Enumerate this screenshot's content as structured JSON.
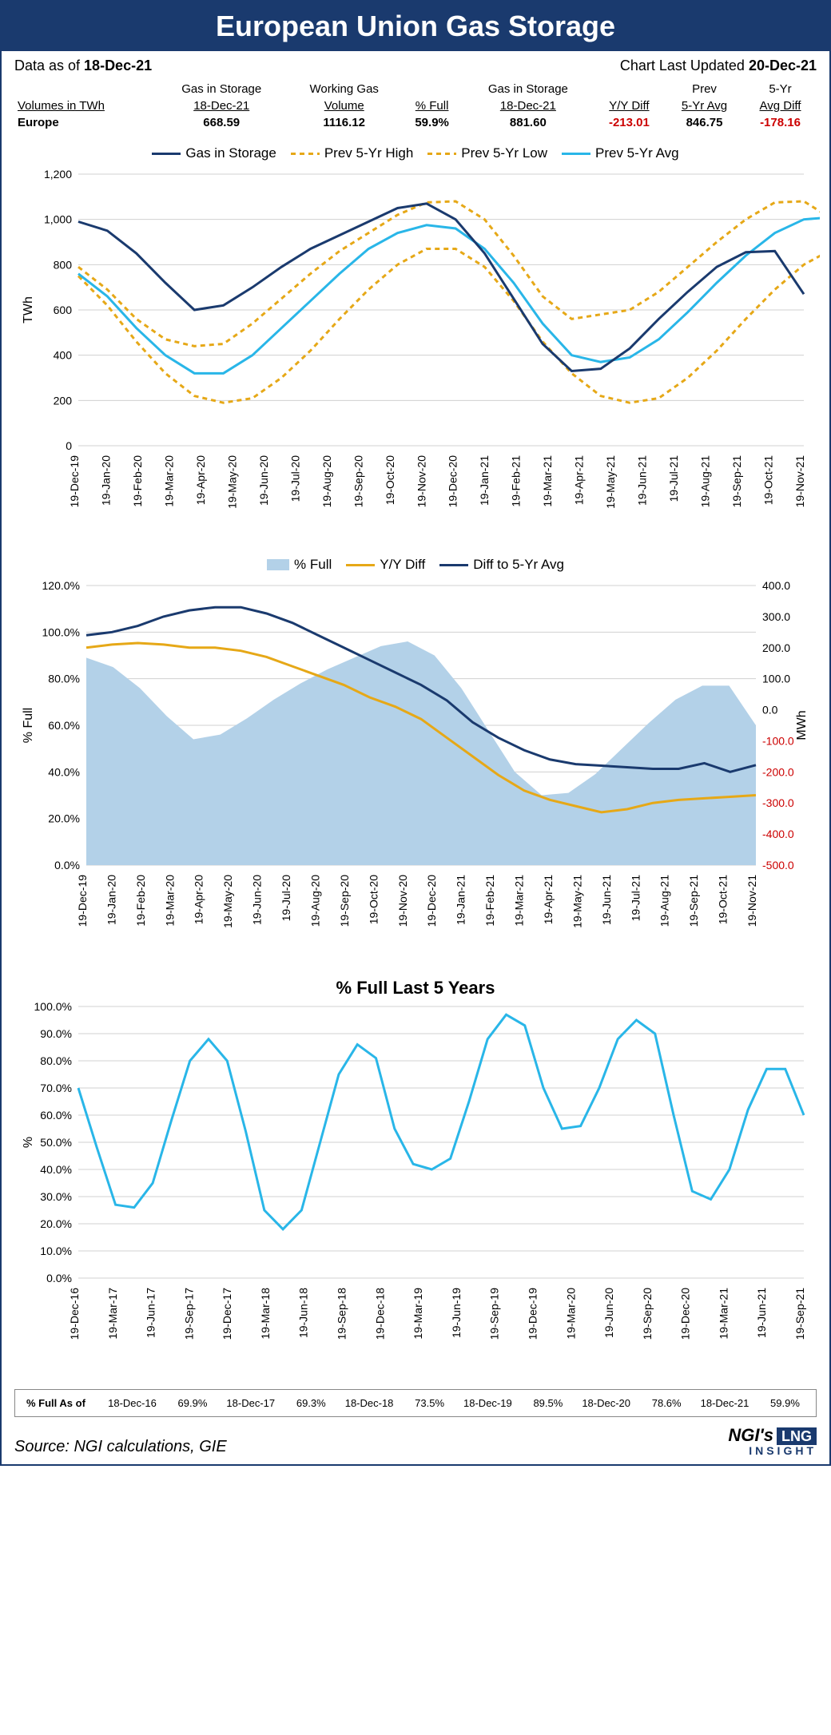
{
  "title": "European Union Gas Storage",
  "meta": {
    "data_as_of_label": "Data as of ",
    "data_as_of": "18-Dec-21",
    "updated_label": "Chart Last Updated ",
    "updated": "20-Dec-21"
  },
  "table": {
    "headers": {
      "volumes": "Volumes in TWh",
      "gas_storage1_a": "Gas in Storage",
      "gas_storage1_b": "18-Dec-21",
      "working_a": "Working Gas",
      "working_b": "Volume",
      "pct_full": "% Full",
      "gas_storage2_a": "Gas in Storage",
      "gas_storage2_b": "18-Dec-21",
      "yy": "Y/Y Diff",
      "prev_a": "Prev",
      "prev_b": "5-Yr Avg",
      "avgdiff_a": "5-Yr",
      "avgdiff_b": "Avg Diff"
    },
    "row": {
      "region": "Europe",
      "gas_storage1": "668.59",
      "working": "1116.12",
      "pct_full": "59.9%",
      "gas_storage2": "881.60",
      "yy": "-213.01",
      "prev": "846.75",
      "avgdiff": "-178.16"
    }
  },
  "chart1": {
    "type": "line",
    "legend": {
      "s1": "Gas in Storage",
      "s2": "Prev 5-Yr High",
      "s3": "Prev 5-Yr Low",
      "s4": "Prev 5-Yr Avg"
    },
    "colors": {
      "gas": "#1a3a6e",
      "high": "#e6a817",
      "low": "#e6a817",
      "avg": "#29b6e8",
      "grid": "#d0d0d0",
      "bg": "#ffffff"
    },
    "ylabel": "TWh",
    "ylim": [
      0,
      1200
    ],
    "ytick_step": 200,
    "yticks": [
      "0",
      "200",
      "400",
      "600",
      "800",
      "1,000",
      "1,200"
    ],
    "xticks": [
      "19-Dec-19",
      "19-Jan-20",
      "19-Feb-20",
      "19-Mar-20",
      "19-Apr-20",
      "19-May-20",
      "19-Jun-20",
      "19-Jul-20",
      "19-Aug-20",
      "19-Sep-20",
      "19-Oct-20",
      "19-Nov-20",
      "19-Dec-20",
      "19-Jan-21",
      "19-Feb-21",
      "19-Mar-21",
      "19-Apr-21",
      "19-May-21",
      "19-Jun-21",
      "19-Jul-21",
      "19-Aug-21",
      "19-Sep-21",
      "19-Oct-21",
      "19-Nov-21"
    ],
    "line_width": 3,
    "dash": "6,5",
    "series": {
      "gas": [
        990,
        950,
        850,
        720,
        600,
        620,
        700,
        790,
        870,
        930,
        990,
        1050,
        1070,
        1000,
        850,
        650,
        450,
        330,
        340,
        430,
        560,
        680,
        790,
        855,
        860,
        670
      ],
      "high": [
        790,
        690,
        560,
        470,
        440,
        450,
        540,
        650,
        760,
        860,
        940,
        1020,
        1075,
        1080,
        1000,
        840,
        660,
        560,
        580,
        600,
        680,
        790,
        900,
        1000,
        1075,
        1080,
        1000
      ],
      "low": [
        750,
        620,
        460,
        320,
        220,
        190,
        210,
        300,
        420,
        560,
        690,
        800,
        870,
        870,
        790,
        640,
        460,
        320,
        220,
        190,
        210,
        300,
        420,
        560,
        690,
        800,
        870,
        870
      ],
      "avg": [
        760,
        660,
        520,
        400,
        320,
        320,
        400,
        520,
        640,
        760,
        870,
        940,
        975,
        960,
        870,
        720,
        540,
        400,
        370,
        390,
        470,
        590,
        720,
        840,
        940,
        1000,
        1010,
        850
      ]
    }
  },
  "chart2": {
    "type": "area+line",
    "legend": {
      "s1": "% Full",
      "s2": "Y/Y Diff",
      "s3": "Diff to 5-Yr Avg"
    },
    "colors": {
      "area": "#b3d1e8",
      "yy": "#e6a817",
      "diff5": "#1a3a6e",
      "grid": "#d0d0d0",
      "neg_axis": "#cc0000"
    },
    "ylabel_left": "% Full",
    "ylabel_right": "MWh",
    "yleft": {
      "min": 0,
      "max": 120,
      "step": 20,
      "ticks": [
        "0.0%",
        "20.0%",
        "40.0%",
        "60.0%",
        "80.0%",
        "100.0%",
        "120.0%"
      ]
    },
    "yright": {
      "min": -500,
      "max": 400,
      "step": 100,
      "ticks": [
        "-500.0",
        "-400.0",
        "-300.0",
        "-200.0",
        "-100.0",
        "0.0",
        "100.0",
        "200.0",
        "300.0",
        "400.0"
      ]
    },
    "xticks": [
      "19-Dec-19",
      "19-Jan-20",
      "19-Feb-20",
      "19-Mar-20",
      "19-Apr-20",
      "19-May-20",
      "19-Jun-20",
      "19-Jul-20",
      "19-Aug-20",
      "19-Sep-20",
      "19-Oct-20",
      "19-Nov-20",
      "19-Dec-20",
      "19-Jan-21",
      "19-Feb-21",
      "19-Mar-21",
      "19-Apr-21",
      "19-May-21",
      "19-Jun-21",
      "19-Jul-21",
      "19-Aug-21",
      "19-Sep-21",
      "19-Oct-21",
      "19-Nov-21"
    ],
    "line_width": 3,
    "series": {
      "pct_full": [
        89,
        85,
        76,
        64,
        54,
        56,
        63,
        71,
        78,
        84,
        89,
        94,
        96,
        90,
        76,
        58,
        40,
        30,
        31,
        39,
        50,
        61,
        71,
        77,
        77,
        60
      ],
      "yy": [
        200,
        210,
        215,
        210,
        200,
        200,
        190,
        170,
        140,
        110,
        80,
        40,
        10,
        -30,
        -90,
        -150,
        -210,
        -260,
        -290,
        -310,
        -330,
        -320,
        -300,
        -290,
        -285,
        -280,
        -275
      ],
      "diff5": [
        240,
        250,
        270,
        300,
        320,
        330,
        330,
        310,
        280,
        240,
        200,
        160,
        120,
        80,
        30,
        -40,
        -90,
        -130,
        -160,
        -175,
        -180,
        -185,
        -190,
        -190,
        -172,
        -200,
        -178
      ]
    }
  },
  "chart3": {
    "type": "line",
    "title": "% Full Last 5 Years",
    "colors": {
      "line": "#29b6e8",
      "grid": "#d0d0d0"
    },
    "ylabel": "%",
    "ylim": [
      0,
      100
    ],
    "ytick_step": 10,
    "yticks": [
      "0.0%",
      "10.0%",
      "20.0%",
      "30.0%",
      "40.0%",
      "50.0%",
      "60.0%",
      "70.0%",
      "80.0%",
      "90.0%",
      "100.0%"
    ],
    "xticks": [
      "19-Dec-16",
      "19-Mar-17",
      "19-Jun-17",
      "19-Sep-17",
      "19-Dec-17",
      "19-Mar-18",
      "19-Jun-18",
      "19-Sep-18",
      "19-Dec-18",
      "19-Mar-19",
      "19-Jun-19",
      "19-Sep-19",
      "19-Dec-19",
      "19-Mar-20",
      "19-Jun-20",
      "19-Sep-20",
      "19-Dec-20",
      "19-Mar-21",
      "19-Jun-21",
      "19-Sep-21"
    ],
    "line_width": 3,
    "series": {
      "pct": [
        70,
        48,
        27,
        26,
        35,
        58,
        80,
        88,
        80,
        54,
        25,
        18,
        25,
        50,
        75,
        86,
        81,
        55,
        42,
        40,
        44,
        65,
        88,
        97,
        93,
        70,
        55,
        56,
        70,
        88,
        95,
        90,
        60,
        32,
        29,
        40,
        62,
        77,
        77,
        60
      ]
    }
  },
  "footer_table": {
    "label": "% Full As of",
    "items": [
      {
        "date": "18-Dec-16",
        "val": "69.9%"
      },
      {
        "date": "18-Dec-17",
        "val": "69.3%"
      },
      {
        "date": "18-Dec-18",
        "val": "73.5%"
      },
      {
        "date": "18-Dec-19",
        "val": "89.5%"
      },
      {
        "date": "18-Dec-20",
        "val": "78.6%"
      },
      {
        "date": "18-Dec-21",
        "val": "59.9%"
      }
    ]
  },
  "source": "Source: NGI calculations, GIE",
  "logo": {
    "brand": "NGI's",
    "lng": "LNG",
    "sub": "INSIGHT"
  }
}
